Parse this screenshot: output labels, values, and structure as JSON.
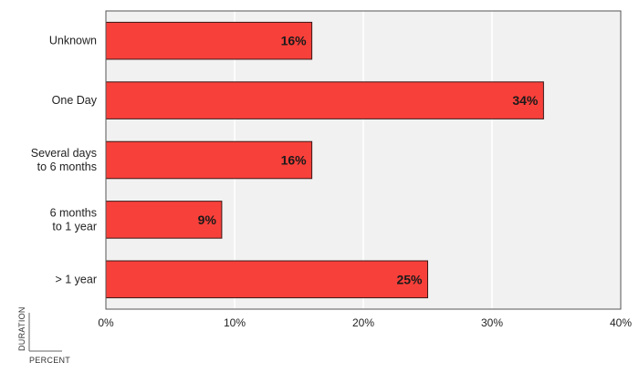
{
  "chart_data": {
    "type": "bar",
    "orientation": "horizontal",
    "categories": [
      [
        "Unknown"
      ],
      [
        "One Day"
      ],
      [
        "Several days",
        "to 6 months"
      ],
      [
        "6 months",
        "to 1 year"
      ],
      [
        "> 1 year"
      ]
    ],
    "values": [
      16,
      34,
      16,
      9,
      25
    ],
    "data_labels": [
      "16%",
      "34%",
      "16%",
      "9%",
      "25%"
    ],
    "x_ticks": [
      "0%",
      "10%",
      "20%",
      "30%",
      "40%"
    ],
    "xlim": [
      0,
      40
    ],
    "grid": true,
    "xlabel": "PERCENT",
    "ylabel": "DURATION",
    "colors": {
      "bar": "#f8403a",
      "bar_stroke": "#3a1a18",
      "plot_background": "#f1f1f1",
      "grid": "#ffffff",
      "frame": "#555555"
    }
  }
}
